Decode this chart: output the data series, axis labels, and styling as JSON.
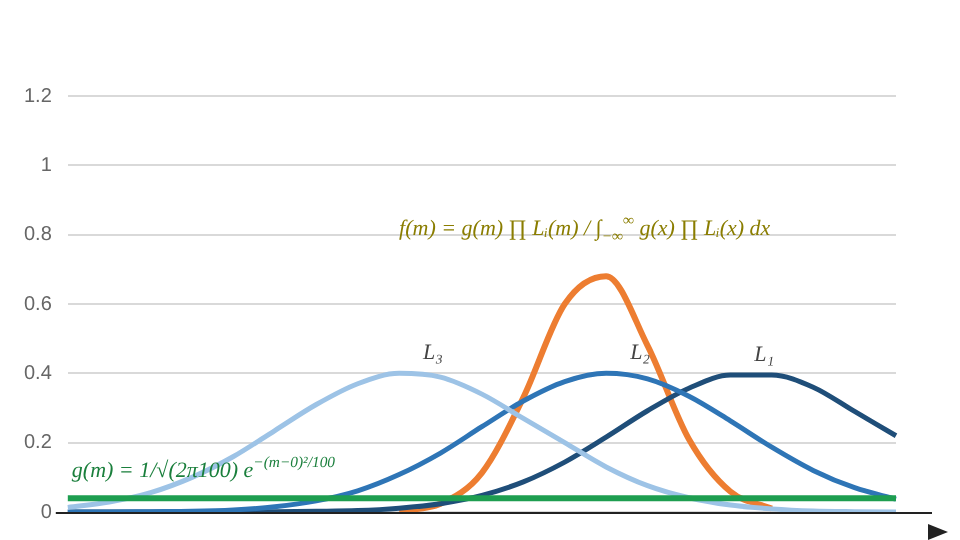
{
  "chart_data": {
    "type": "line",
    "categories": [
      null,
      null,
      null,
      null,
      null,
      null,
      null,
      null,
      null,
      null,
      null,
      null,
      null,
      null,
      null,
      null,
      null,
      null,
      null,
      null,
      null
    ],
    "series": [
      {
        "color": "#1e9e50",
        "values": [
          0.04,
          0.04,
          0.04,
          0.04,
          0.04,
          0.04,
          0.04,
          0.04,
          0.04,
          0.04,
          0.04,
          0.04,
          0.04,
          0.04,
          0.04,
          0.04,
          0.04,
          0.04,
          0.04,
          0.04,
          0.04
        ]
      },
      {
        "name": "L₃",
        "color": "#9dc3e6",
        "values": [
          0.013,
          0.029,
          0.056,
          0.1,
          0.16,
          0.235,
          0.31,
          0.37,
          0.4,
          0.389,
          0.34,
          0.27,
          0.2,
          0.13,
          0.076,
          0.041,
          0.02,
          0.009,
          0.003,
          0.001,
          0
        ]
      },
      {
        "name": "L₂",
        "color": "#2e75b6",
        "values": [
          0,
          0,
          0.001,
          0.002,
          0.006,
          0.015,
          0.032,
          0.061,
          0.108,
          0.17,
          0.246,
          0.32,
          0.376,
          0.4,
          0.384,
          0.334,
          0.263,
          0.187,
          0.12,
          0.07,
          0.037
        ]
      },
      {
        "name": "L₁",
        "color": "#1f4e79",
        "values": [
          0,
          0,
          0,
          0,
          0,
          0.001,
          0.002,
          0.004,
          0.011,
          0.024,
          0.048,
          0.087,
          0.144,
          0.216,
          0.292,
          0.357,
          0.395,
          0.395,
          0.36,
          0.29,
          0.22
        ]
      },
      {
        "color": "#ed7d31",
        "values": [
          null,
          null,
          null,
          null,
          null,
          null,
          null,
          null,
          0.003,
          0.024,
          0.113,
          0.33,
          0.6,
          0.68,
          0.48,
          0.21,
          0.059,
          0.01,
          null,
          null,
          null
        ]
      }
    ],
    "annotations": [
      "f(m) = g(m) ∏ Lᵢ(m) / ∫$_{−∞}$$^{∞}$ g(x) ∏ Lᵢ(x) dx",
      "g(m) = 1/√(2π100) e$^{−(m−0)²/100}$"
    ],
    "ylim": [
      0,
      1.2
    ],
    "yticks": [
      0,
      0.2,
      0.4,
      0.6,
      0.8,
      1,
      1.2
    ],
    "grid": "y",
    "tick_labels": "y",
    "legend": false,
    "marker": "none",
    "line_style": "solid"
  }
}
